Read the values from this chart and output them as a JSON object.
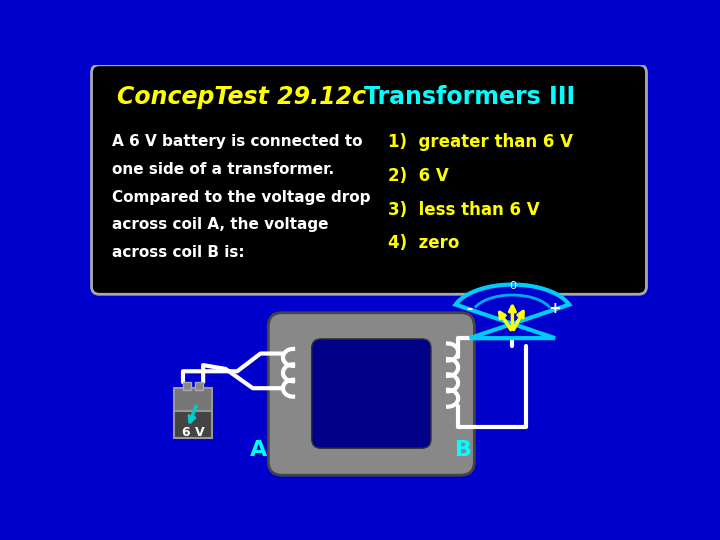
{
  "bg_color": "#0000cc",
  "title_italic": "ConcepTest 29.12c",
  "title_regular": "Transformers III",
  "title_italic_color": "#ffff00",
  "title_regular_color": "#00ffff",
  "box_bg": "#000000",
  "box_text_color": "#ffffff",
  "answer_color": "#ffff00",
  "question_lines": [
    "A 6 V battery is connected to",
    "one side of a transformer.",
    "Compared to the voltage drop",
    "across coil A, the voltage",
    "across coil B is:"
  ],
  "answers": [
    "1)  greater than 6 V",
    "2)  6 V",
    "3)  less than 6 V",
    "4)  zero"
  ],
  "label_A_color": "#00ffff",
  "label_B_color": "#00ffff"
}
